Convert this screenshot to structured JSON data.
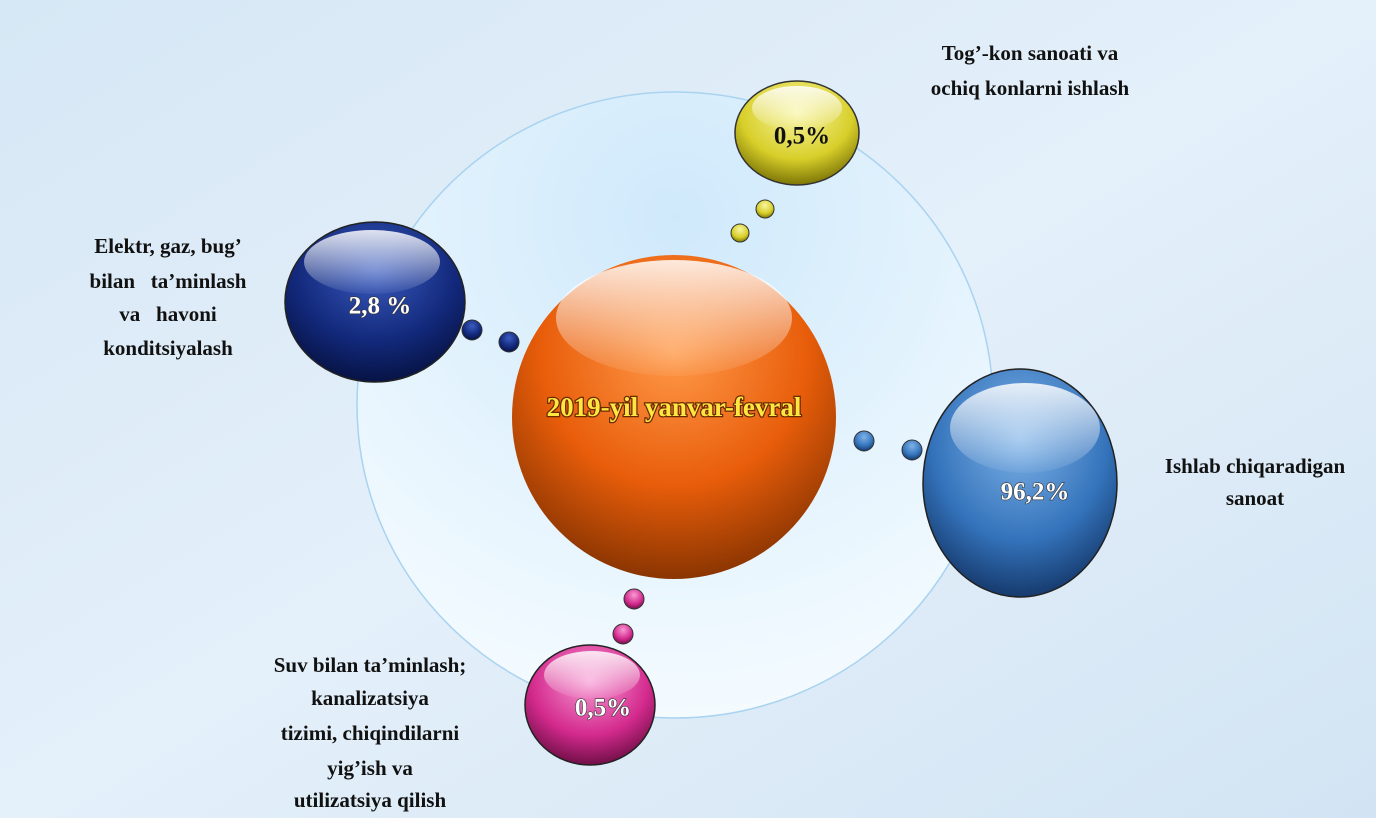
{
  "center": {
    "label": "2019-yil yanvar-fevral"
  },
  "nodes": [
    {
      "label": [
        "Tog’-kon sanoati va",
        "ochiq konlarni ishlash"
      ],
      "value": "0,5%"
    },
    {
      "label": [
        "Elektr, gaz, bug’",
        "bilan   ta’minlash",
        "va   havoni",
        "konditsiyalash"
      ],
      "value": "2,8 %"
    },
    {
      "label": [
        "Ishlab chiqaradigan",
        "sanoat"
      ],
      "value": "96,2%"
    },
    {
      "label": [
        "Suv bilan ta’minlash;",
        "kanalizatsiya",
        "tizimi, chiqindilarni",
        "yig’ish va",
        "utilizatsiya qilish"
      ],
      "value": "0,5%"
    }
  ]
}
